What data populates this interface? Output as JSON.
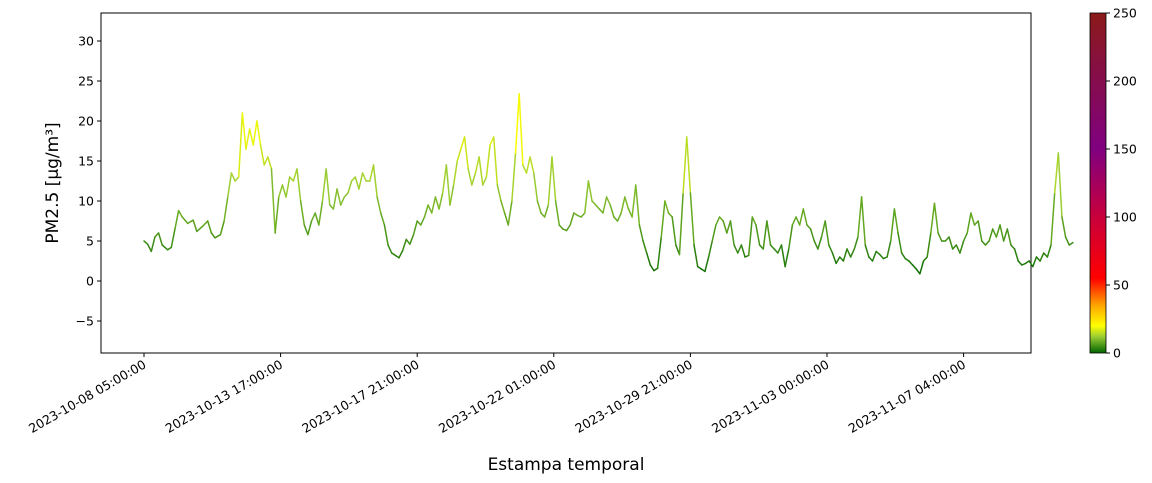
{
  "chart_data": {
    "type": "line",
    "xlabel": "Estampa temporal",
    "ylabel": "PM2.5 [μg/m³]",
    "ylim": [
      -9,
      33.5
    ],
    "yticks": [
      -5,
      0,
      5,
      10,
      15,
      20,
      25,
      30
    ],
    "xticks": [
      "2023-10-08 05:00:00",
      "2023-10-13 17:00:00",
      "2023-10-17 21:00:00",
      "2023-10-22 01:00:00",
      "2023-10-29 21:00:00",
      "2023-11-03 00:00:00",
      "2023-11-07 04:00:00"
    ],
    "x_note_index_range": [
      0,
      510
    ],
    "grid": false,
    "colorbar": {
      "range": [
        0,
        250
      ],
      "ticks": [
        0,
        50,
        100,
        150,
        200,
        250
      ],
      "stops": [
        {
          "v": 0,
          "color": "#006400"
        },
        {
          "v": 12,
          "color": "#9acd32"
        },
        {
          "v": 20,
          "color": "#ffff00"
        },
        {
          "v": 35,
          "color": "#ffa500"
        },
        {
          "v": 55,
          "color": "#ff0000"
        },
        {
          "v": 100,
          "color": "#c8003c"
        },
        {
          "v": 150,
          "color": "#800080"
        },
        {
          "v": 250,
          "color": "#8b1a1a"
        }
      ]
    },
    "series": [
      {
        "keypoints": [
          [
            0,
            5.0
          ],
          [
            2,
            4.6
          ],
          [
            4,
            3.7
          ],
          [
            6,
            5.5
          ],
          [
            8,
            6.0
          ],
          [
            10,
            4.5
          ],
          [
            13,
            3.9
          ],
          [
            15,
            4.2
          ],
          [
            17,
            6.5
          ],
          [
            19,
            8.8
          ],
          [
            21,
            8.0
          ],
          [
            24,
            7.2
          ],
          [
            27,
            7.6
          ],
          [
            29,
            6.2
          ],
          [
            32,
            6.8
          ],
          [
            35,
            7.5
          ],
          [
            37,
            6.0
          ],
          [
            39,
            5.4
          ],
          [
            42,
            5.8
          ],
          [
            44,
            7.5
          ],
          [
            46,
            10.5
          ],
          [
            48,
            13.5
          ],
          [
            50,
            12.5
          ],
          [
            52,
            13.0
          ],
          [
            54,
            21.0
          ],
          [
            56,
            16.5
          ],
          [
            58,
            19.0
          ],
          [
            60,
            17.0
          ],
          [
            62,
            20.0
          ],
          [
            64,
            17.0
          ],
          [
            66,
            14.5
          ],
          [
            68,
            15.5
          ],
          [
            70,
            14.0
          ],
          [
            72,
            6.0
          ],
          [
            74,
            10.5
          ],
          [
            76,
            12.0
          ],
          [
            78,
            10.5
          ],
          [
            80,
            13.0
          ],
          [
            82,
            12.5
          ],
          [
            84,
            14.0
          ],
          [
            86,
            10.0
          ],
          [
            88,
            7.0
          ],
          [
            90,
            5.8
          ],
          [
            92,
            7.5
          ],
          [
            94,
            8.5
          ],
          [
            96,
            7.0
          ],
          [
            98,
            10.0
          ],
          [
            100,
            14.0
          ],
          [
            102,
            9.5
          ],
          [
            104,
            9.0
          ],
          [
            106,
            11.5
          ],
          [
            108,
            9.5
          ],
          [
            110,
            10.5
          ],
          [
            112,
            11.0
          ],
          [
            114,
            12.5
          ],
          [
            116,
            13.0
          ],
          [
            118,
            11.5
          ],
          [
            120,
            13.5
          ],
          [
            122,
            12.5
          ],
          [
            124,
            12.5
          ],
          [
            126,
            14.5
          ],
          [
            128,
            10.5
          ],
          [
            130,
            8.5
          ],
          [
            132,
            7.0
          ],
          [
            134,
            4.5
          ],
          [
            136,
            3.5
          ],
          [
            138,
            3.2
          ],
          [
            140,
            2.9
          ],
          [
            142,
            3.8
          ],
          [
            144,
            5.2
          ],
          [
            146,
            4.6
          ],
          [
            148,
            5.8
          ],
          [
            150,
            7.5
          ],
          [
            152,
            7.0
          ],
          [
            154,
            8.0
          ],
          [
            156,
            9.5
          ],
          [
            158,
            8.5
          ],
          [
            160,
            10.5
          ],
          [
            162,
            9.0
          ],
          [
            164,
            11.0
          ],
          [
            166,
            14.5
          ],
          [
            168,
            9.5
          ],
          [
            170,
            12.0
          ],
          [
            172,
            15.0
          ],
          [
            174,
            16.5
          ],
          [
            176,
            18.0
          ],
          [
            178,
            14.0
          ],
          [
            180,
            12.0
          ],
          [
            182,
            13.5
          ],
          [
            184,
            15.5
          ],
          [
            186,
            12.0
          ],
          [
            188,
            13.0
          ],
          [
            190,
            17.0
          ],
          [
            192,
            18.0
          ],
          [
            194,
            12.0
          ],
          [
            196,
            10.0
          ],
          [
            198,
            8.5
          ],
          [
            200,
            7.0
          ],
          [
            202,
            10.0
          ],
          [
            204,
            16.0
          ],
          [
            206,
            23.4
          ],
          [
            208,
            14.5
          ],
          [
            210,
            13.5
          ],
          [
            212,
            15.5
          ],
          [
            214,
            13.5
          ],
          [
            216,
            10.0
          ],
          [
            218,
            8.5
          ],
          [
            220,
            8.0
          ],
          [
            222,
            9.5
          ],
          [
            224,
            15.5
          ],
          [
            226,
            10.0
          ],
          [
            228,
            7.0
          ],
          [
            230,
            6.5
          ],
          [
            232,
            6.3
          ],
          [
            234,
            7.0
          ],
          [
            236,
            8.5
          ],
          [
            238,
            8.2
          ],
          [
            240,
            8.0
          ],
          [
            242,
            8.5
          ],
          [
            244,
            12.5
          ],
          [
            246,
            10.0
          ],
          [
            248,
            9.5
          ],
          [
            250,
            9.0
          ],
          [
            252,
            8.5
          ],
          [
            254,
            10.5
          ],
          [
            256,
            9.5
          ],
          [
            258,
            8.0
          ],
          [
            260,
            7.5
          ],
          [
            262,
            8.5
          ],
          [
            264,
            10.5
          ],
          [
            266,
            9.0
          ],
          [
            268,
            8.0
          ],
          [
            270,
            12.0
          ],
          [
            272,
            7.0
          ],
          [
            274,
            5.0
          ],
          [
            276,
            3.5
          ],
          [
            278,
            2.0
          ],
          [
            280,
            1.3
          ],
          [
            282,
            1.6
          ],
          [
            284,
            5.5
          ],
          [
            286,
            10.0
          ],
          [
            288,
            8.5
          ],
          [
            290,
            8.0
          ],
          [
            292,
            4.5
          ],
          [
            294,
            3.3
          ],
          [
            296,
            11.0
          ],
          [
            298,
            18.0
          ],
          [
            300,
            11.0
          ],
          [
            302,
            4.5
          ],
          [
            304,
            1.8
          ],
          [
            306,
            1.5
          ],
          [
            308,
            1.2
          ],
          [
            310,
            3.0
          ],
          [
            312,
            5.0
          ],
          [
            314,
            7.0
          ],
          [
            316,
            8.0
          ],
          [
            318,
            7.5
          ],
          [
            320,
            6.0
          ],
          [
            322,
            7.5
          ],
          [
            324,
            4.5
          ],
          [
            326,
            3.5
          ],
          [
            328,
            4.5
          ],
          [
            330,
            3.0
          ],
          [
            332,
            3.2
          ],
          [
            334,
            8.0
          ],
          [
            336,
            7.0
          ],
          [
            338,
            4.5
          ],
          [
            340,
            4.0
          ],
          [
            342,
            7.5
          ],
          [
            344,
            4.5
          ],
          [
            346,
            4.0
          ],
          [
            348,
            3.5
          ],
          [
            350,
            4.5
          ],
          [
            352,
            1.8
          ],
          [
            354,
            4.0
          ],
          [
            356,
            7.0
          ],
          [
            358,
            8.0
          ],
          [
            360,
            7.0
          ],
          [
            362,
            9.0
          ],
          [
            364,
            7.0
          ],
          [
            366,
            6.5
          ],
          [
            368,
            5.0
          ],
          [
            370,
            4.0
          ],
          [
            372,
            5.5
          ],
          [
            374,
            7.5
          ],
          [
            376,
            4.5
          ],
          [
            378,
            3.5
          ],
          [
            380,
            2.2
          ],
          [
            382,
            3.0
          ],
          [
            384,
            2.5
          ],
          [
            386,
            4.0
          ],
          [
            388,
            3.0
          ],
          [
            390,
            4.0
          ],
          [
            392,
            5.5
          ],
          [
            394,
            10.5
          ],
          [
            396,
            4.5
          ],
          [
            398,
            3.0
          ],
          [
            400,
            2.5
          ],
          [
            402,
            3.7
          ],
          [
            404,
            3.3
          ],
          [
            406,
            2.8
          ],
          [
            408,
            3.0
          ],
          [
            410,
            5.0
          ],
          [
            412,
            9.0
          ],
          [
            414,
            6.0
          ],
          [
            416,
            3.5
          ],
          [
            418,
            2.8
          ],
          [
            420,
            2.5
          ],
          [
            422,
            2.0
          ],
          [
            424,
            1.5
          ],
          [
            426,
            0.9
          ],
          [
            428,
            2.5
          ],
          [
            430,
            3.0
          ],
          [
            432,
            6.0
          ],
          [
            434,
            9.7
          ],
          [
            436,
            6.0
          ],
          [
            438,
            5.0
          ],
          [
            440,
            5.0
          ],
          [
            442,
            5.5
          ],
          [
            444,
            4.0
          ],
          [
            446,
            4.5
          ],
          [
            448,
            3.5
          ],
          [
            450,
            5.0
          ],
          [
            452,
            6.0
          ],
          [
            454,
            8.5
          ],
          [
            456,
            7.0
          ],
          [
            458,
            7.5
          ],
          [
            460,
            5.0
          ],
          [
            462,
            4.5
          ],
          [
            464,
            5.0
          ],
          [
            466,
            6.5
          ],
          [
            468,
            5.5
          ],
          [
            470,
            7.0
          ],
          [
            472,
            5.0
          ],
          [
            474,
            6.5
          ],
          [
            476,
            4.5
          ],
          [
            478,
            4.0
          ],
          [
            480,
            2.5
          ],
          [
            482,
            2.0
          ],
          [
            484,
            2.2
          ],
          [
            486,
            2.5
          ],
          [
            488,
            1.8
          ],
          [
            490,
            3.0
          ],
          [
            492,
            2.5
          ],
          [
            494,
            3.5
          ],
          [
            496,
            3.0
          ],
          [
            498,
            4.5
          ],
          [
            500,
            11.0
          ],
          [
            502,
            16.0
          ],
          [
            504,
            8.0
          ],
          [
            506,
            5.5
          ],
          [
            508,
            4.5
          ],
          [
            510,
            4.8
          ]
        ]
      }
    ]
  }
}
